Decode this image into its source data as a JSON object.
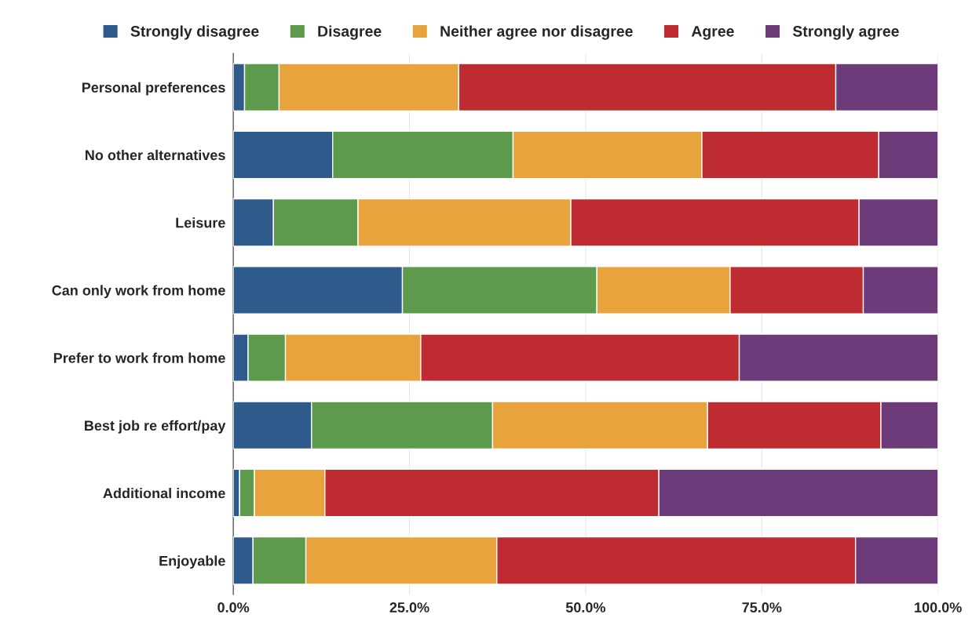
{
  "chart_data": {
    "type": "bar",
    "orientation": "horizontal",
    "stacked": true,
    "categories": [
      "Personal preferences",
      "No other alternatives",
      "Leisure",
      "Can only work from home",
      "Prefer to work from home",
      "Best job re effort/pay",
      "Additional income",
      "Enjoyable"
    ],
    "series": [
      {
        "name": "Strongly disagree",
        "color": "#2e5a8c",
        "values": [
          1.6,
          14.1,
          5.7,
          24.0,
          2.1,
          11.1,
          0.9,
          2.8
        ]
      },
      {
        "name": "Disagree",
        "color": "#5e9a4b",
        "values": [
          4.9,
          25.6,
          12.0,
          27.6,
          5.3,
          25.7,
          2.1,
          7.5
        ]
      },
      {
        "name": "Neither agree nor disagree",
        "color": "#e8a33d",
        "values": [
          25.5,
          26.8,
          30.2,
          18.9,
          19.2,
          30.5,
          10.0,
          27.1
        ]
      },
      {
        "name": "Agree",
        "color": "#be2b31",
        "values": [
          53.5,
          25.1,
          40.9,
          18.9,
          45.2,
          24.6,
          47.4,
          50.9
        ]
      },
      {
        "name": "Strongly agree",
        "color": "#6e3b7a",
        "values": [
          14.5,
          8.4,
          11.2,
          10.6,
          28.2,
          8.1,
          39.6,
          11.7
        ]
      }
    ],
    "xlim": [
      0,
      100
    ],
    "xticks": [
      {
        "value": 0,
        "label": "0.0%"
      },
      {
        "value": 25,
        "label": "25.0%"
      },
      {
        "value": 50,
        "label": "50.0%"
      },
      {
        "value": 75,
        "label": "75.0%"
      },
      {
        "value": 100,
        "label": "100.0%"
      }
    ],
    "grid": "x",
    "legend": "top"
  }
}
